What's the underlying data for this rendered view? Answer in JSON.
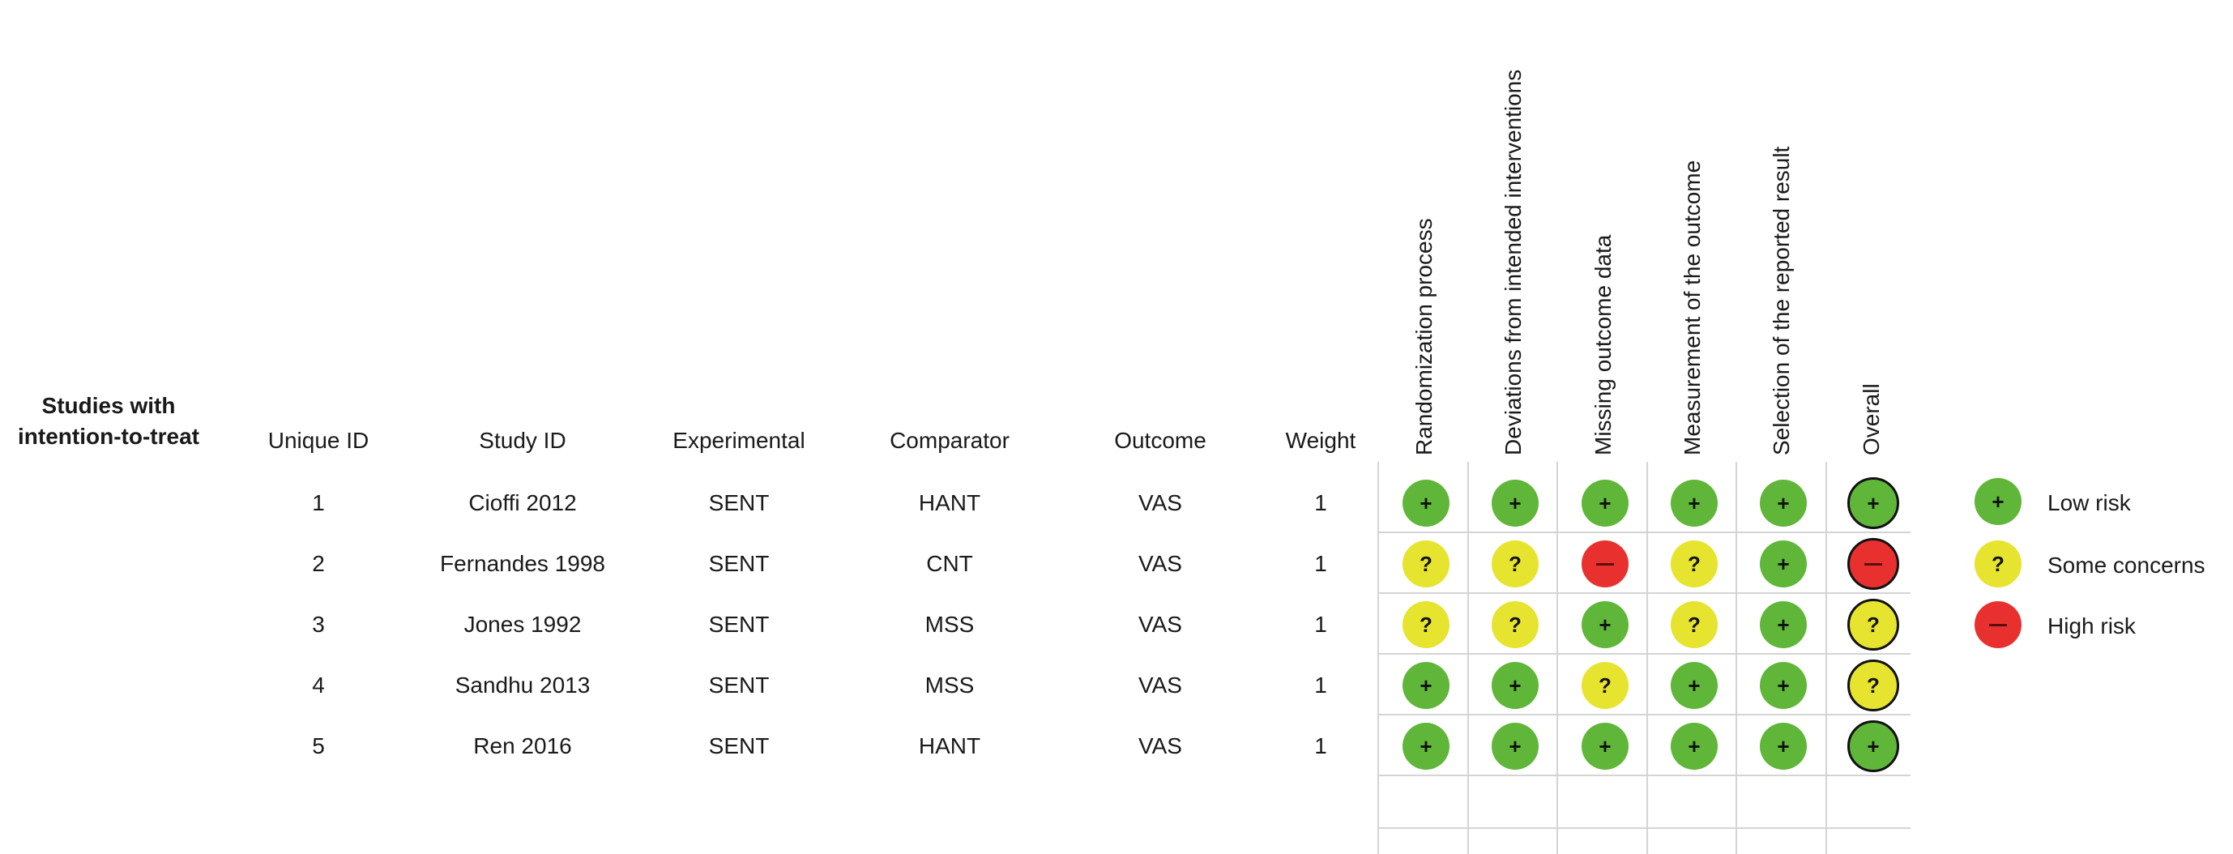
{
  "chart_data": {
    "type": "table",
    "title": "Studies with intention-to-treat",
    "columns": [
      "Unique ID",
      "Study ID",
      "Experimental",
      "Comparator",
      "Outcome",
      "Weight"
    ],
    "domains": [
      "Randomization process",
      "Deviations from intended interventions",
      "Missing outcome data",
      "Measurement of the outcome",
      "Selection of the reported result",
      "Overall"
    ],
    "rows": [
      {
        "unique_id": "1",
        "study_id": "Cioffi 2012",
        "experimental": "SENT",
        "comparator": "HANT",
        "outcome": "VAS",
        "weight": "1",
        "judgements": [
          "low",
          "low",
          "low",
          "low",
          "low",
          "low"
        ]
      },
      {
        "unique_id": "2",
        "study_id": "Fernandes 1998",
        "experimental": "SENT",
        "comparator": "CNT",
        "outcome": "VAS",
        "weight": "1",
        "judgements": [
          "some",
          "some",
          "high",
          "some",
          "low",
          "high"
        ]
      },
      {
        "unique_id": "3",
        "study_id": "Jones 1992",
        "experimental": "SENT",
        "comparator": "MSS",
        "outcome": "VAS",
        "weight": "1",
        "judgements": [
          "some",
          "some",
          "low",
          "some",
          "low",
          "some"
        ]
      },
      {
        "unique_id": "4",
        "study_id": "Sandhu 2013",
        "experimental": "SENT",
        "comparator": "MSS",
        "outcome": "VAS",
        "weight": "1",
        "judgements": [
          "low",
          "low",
          "some",
          "low",
          "low",
          "some"
        ]
      },
      {
        "unique_id": "5",
        "study_id": "Ren 2016",
        "experimental": "SENT",
        "comparator": "HANT",
        "outcome": "VAS",
        "weight": "1",
        "judgements": [
          "low",
          "low",
          "low",
          "low",
          "low",
          "low"
        ]
      }
    ],
    "legend": [
      {
        "key": "low",
        "label": "Low risk",
        "symbol": "+",
        "color": "#5fb638"
      },
      {
        "key": "some",
        "label": "Some concerns",
        "symbol": "?",
        "color": "#e6e42e"
      },
      {
        "key": "high",
        "label": "High risk",
        "symbol": "—",
        "color": "#e8312e"
      }
    ]
  }
}
